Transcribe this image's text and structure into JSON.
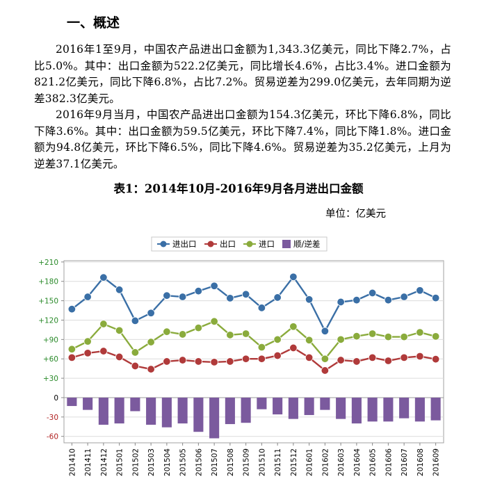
{
  "section": {
    "heading": "一、概述"
  },
  "paragraphs": [
    "2016年1至9月，中国农产品进出口金额为1,343.3亿美元，同比下降2.7%，占比5.0%。其中：出口金额为522.2亿美元，同比增长4.6%，占比3.4%。进口金额为821.2亿美元，同比下降6.8%，占比7.2%。贸易逆差为299.0亿美元，去年同期为逆差382.3亿美元。",
    "2016年9月当月，中国农产品进出口金额为154.3亿美元，环比下降6.8%，同比下降3.6%。其中：出口金额为59.5亿美元，环比下降7.4%，同比下降1.8%。进口金额为94.8亿美元，环比下降6.5%，同比下降4.6%。贸易逆差为35.2亿美元，上月为逆差37.1亿美元。"
  ],
  "table": {
    "caption": "表1：2014年10月-2016年9月各月进出口金额",
    "unit": "单位：亿美元"
  },
  "colors": {
    "total": "#3a6fa6",
    "export": "#b03a3a",
    "import": "#8aab3c",
    "balance": "#7b5a9e",
    "tick_positive": "#2a8a2a",
    "tick_negative": "#b02020"
  },
  "chart_data": {
    "type": "line",
    "categories": [
      "201410",
      "201411",
      "201412",
      "201501",
      "201502",
      "201503",
      "201504",
      "201505",
      "201506",
      "201507",
      "201508",
      "201509",
      "201510",
      "201511",
      "201512",
      "201601",
      "201602",
      "201603",
      "201604",
      "201605",
      "201606",
      "201607",
      "201608",
      "201609"
    ],
    "series": [
      {
        "name": "进出口",
        "type": "line",
        "values": [
          137,
          156,
          186,
          167,
          119,
          131,
          158,
          156,
          165,
          173,
          154,
          160,
          139,
          155,
          187,
          152,
          103,
          148,
          151,
          162,
          151,
          156,
          166,
          154.3
        ]
      },
      {
        "name": "出口",
        "type": "line",
        "values": [
          62,
          69,
          72,
          63,
          49,
          44,
          56,
          58,
          56,
          55,
          56,
          60,
          60,
          65,
          77,
          62,
          42,
          58,
          56,
          62,
          57,
          62,
          64,
          59.5
        ]
      },
      {
        "name": "进口",
        "type": "line",
        "values": [
          75,
          87,
          114,
          104,
          70,
          86,
          102,
          98,
          108,
          118,
          97,
          99,
          78,
          90,
          110,
          89,
          60,
          90,
          95,
          99,
          94,
          94,
          101,
          94.8
        ]
      },
      {
        "name": "顺/逆差",
        "type": "bar",
        "values": [
          -13,
          -19,
          -42,
          -40,
          -21,
          -42,
          -46,
          -40,
          -53,
          -63,
          -41,
          -39,
          -18,
          -26,
          -33,
          -27,
          -19,
          -33,
          -40,
          -37,
          -37,
          -32,
          -37,
          -35.2
        ]
      }
    ],
    "y_ticks": [
      "+210",
      "+180",
      "+150",
      "+120",
      "+90",
      "+60",
      "+30",
      "0",
      "-30",
      "-60"
    ],
    "ylim": [
      -70,
      212
    ],
    "grid": true,
    "legend": "top-center"
  }
}
